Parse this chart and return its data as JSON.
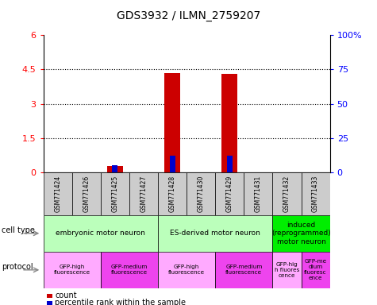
{
  "title": "GDS3932 / ILMN_2759207",
  "samples": [
    "GSM771424",
    "GSM771426",
    "GSM771425",
    "GSM771427",
    "GSM771428",
    "GSM771430",
    "GSM771429",
    "GSM771431",
    "GSM771432",
    "GSM771433"
  ],
  "count_values": [
    0,
    0,
    0.28,
    0,
    4.35,
    0,
    4.32,
    0,
    0,
    0
  ],
  "percentile_values": [
    0,
    0,
    5,
    0,
    12,
    0,
    12,
    0,
    0,
    0
  ],
  "ylim_left": [
    0,
    6
  ],
  "ylim_right": [
    0,
    100
  ],
  "yticks_left": [
    0,
    1.5,
    3,
    4.5,
    6
  ],
  "ytick_labels_left": [
    "0",
    "1.5",
    "3",
    "4.5",
    "6"
  ],
  "yticks_right": [
    0,
    25,
    50,
    75,
    100
  ],
  "ytick_labels_right": [
    "0",
    "25",
    "50",
    "75",
    "100%"
  ],
  "cell_type_groups": [
    {
      "label": "embryonic motor neuron",
      "start": 0,
      "end": 3,
      "color": "#bbffbb"
    },
    {
      "label": "ES-derived motor neuron",
      "start": 4,
      "end": 7,
      "color": "#bbffbb"
    },
    {
      "label": "induced\n(reprogrammed)\nmotor neuron",
      "start": 8,
      "end": 9,
      "color": "#00ee00"
    }
  ],
  "protocol_groups": [
    {
      "label": "GFP-high\nfluorescence",
      "start": 0,
      "end": 1,
      "color": "#ffaaff"
    },
    {
      "label": "GFP-medium\nfluorescence",
      "start": 2,
      "end": 3,
      "color": "#ee44ee"
    },
    {
      "label": "GFP-high\nfluorescence",
      "start": 4,
      "end": 5,
      "color": "#ffaaff"
    },
    {
      "label": "GFP-medium\nfluorescence",
      "start": 6,
      "end": 7,
      "color": "#ee44ee"
    },
    {
      "label": "GFP-hig\nh fluores\ncence",
      "start": 8,
      "end": 8,
      "color": "#ffaaff"
    },
    {
      "label": "GFP-me\ndium\nfluoresc\nence",
      "start": 9,
      "end": 9,
      "color": "#ee44ee"
    }
  ],
  "bar_color": "#cc0000",
  "percentile_color": "#0000cc",
  "sample_bg_color": "#cccccc",
  "cell_type_label": "cell type",
  "protocol_label": "protocol",
  "legend_count": "count",
  "legend_percentile": "percentile rank within the sample"
}
